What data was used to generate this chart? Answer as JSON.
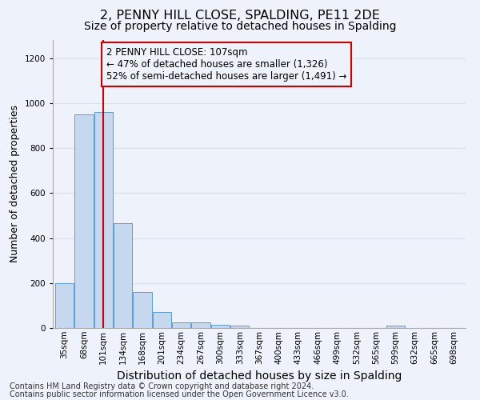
{
  "title": "2, PENNY HILL CLOSE, SPALDING, PE11 2DE",
  "subtitle": "Size of property relative to detached houses in Spalding",
  "xlabel": "Distribution of detached houses by size in Spalding",
  "ylabel": "Number of detached properties",
  "footer_line1": "Contains HM Land Registry data © Crown copyright and database right 2024.",
  "footer_line2": "Contains public sector information licensed under the Open Government Licence v3.0.",
  "categories": [
    "35sqm",
    "68sqm",
    "101sqm",
    "134sqm",
    "168sqm",
    "201sqm",
    "234sqm",
    "267sqm",
    "300sqm",
    "333sqm",
    "367sqm",
    "400sqm",
    "433sqm",
    "466sqm",
    "499sqm",
    "532sqm",
    "565sqm",
    "599sqm",
    "632sqm",
    "665sqm",
    "698sqm"
  ],
  "values": [
    200,
    950,
    960,
    465,
    160,
    70,
    25,
    25,
    15,
    10,
    0,
    0,
    0,
    0,
    0,
    0,
    0,
    10,
    0,
    0,
    0
  ],
  "bar_color": "#c5d8f0",
  "bar_edge_color": "#5a9fd4",
  "red_line_index": 2,
  "annotation_line1": "2 PENNY HILL CLOSE: 107sqm",
  "annotation_line2": "← 47% of detached houses are smaller (1,326)",
  "annotation_line3": "52% of semi-detached houses are larger (1,491) →",
  "ylim": [
    0,
    1280
  ],
  "yticks": [
    0,
    200,
    400,
    600,
    800,
    1000,
    1200
  ],
  "bg_color": "#eef2fa",
  "grid_color": "#d8e0f0",
  "title_fontsize": 11.5,
  "subtitle_fontsize": 10,
  "ylabel_fontsize": 9,
  "xlabel_fontsize": 10,
  "tick_fontsize": 7.5,
  "annotation_fontsize": 8.5,
  "footer_fontsize": 7
}
